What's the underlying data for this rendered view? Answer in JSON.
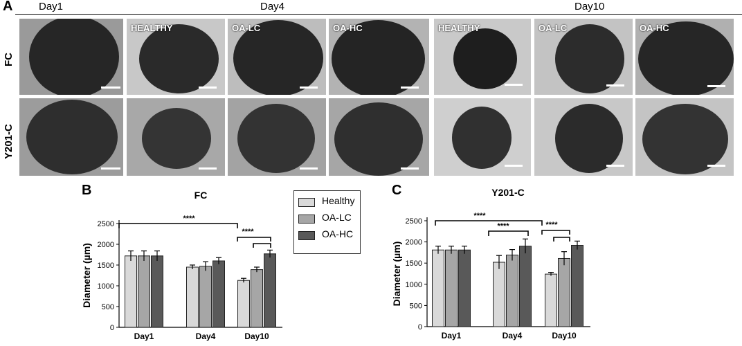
{
  "panel_a": {
    "letter": "A",
    "day_headers": [
      "Day1",
      "Day4",
      "Day10"
    ],
    "row_labels": [
      "FC",
      "Y201-C"
    ],
    "conditions": [
      "HEALTHY",
      "OA-LC",
      "OA-HC"
    ]
  },
  "legend": {
    "items": [
      {
        "label": "Healthy",
        "color": "#d9d9d9"
      },
      {
        "label": "OA-LC",
        "color": "#a6a6a6"
      },
      {
        "label": "OA-HC",
        "color": "#595959"
      }
    ]
  },
  "chart_data": [
    {
      "panel": "B",
      "type": "bar",
      "title": "FC",
      "xlabel": "",
      "ylabel": "Diameter (µm)",
      "ylim": [
        0,
        2500
      ],
      "yticks": [
        "0",
        "500",
        "1000",
        "1500",
        "2000",
        "2500"
      ],
      "categories": [
        "Day1",
        "Day4",
        "Day10"
      ],
      "series": [
        {
          "name": "Healthy",
          "values": [
            1720,
            1450,
            1130
          ],
          "errors": [
            120,
            50,
            50
          ]
        },
        {
          "name": "OA-LC",
          "values": [
            1720,
            1470,
            1390
          ],
          "errors": [
            120,
            110,
            60
          ]
        },
        {
          "name": "OA-HC",
          "values": [
            1720,
            1600,
            1770
          ],
          "errors": [
            120,
            80,
            90
          ]
        }
      ],
      "significance": [
        "****",
        "****"
      ]
    },
    {
      "panel": "C",
      "type": "bar",
      "title": "Y201-C",
      "xlabel": "",
      "ylabel": "Diameter (µm)",
      "ylim": [
        0,
        2500
      ],
      "yticks": [
        "0",
        "500",
        "1000",
        "1500",
        "2000",
        "2500"
      ],
      "categories": [
        "Day1",
        "Day4",
        "Day10"
      ],
      "series": [
        {
          "name": "Healthy",
          "values": [
            1810,
            1520,
            1240
          ],
          "errors": [
            90,
            160,
            40
          ]
        },
        {
          "name": "OA-LC",
          "values": [
            1810,
            1690,
            1610
          ],
          "errors": [
            90,
            130,
            160
          ]
        },
        {
          "name": "OA-HC",
          "values": [
            1810,
            1900,
            1920
          ],
          "errors": [
            90,
            170,
            100
          ]
        }
      ],
      "significance": [
        "****",
        "****",
        "****"
      ]
    }
  ]
}
